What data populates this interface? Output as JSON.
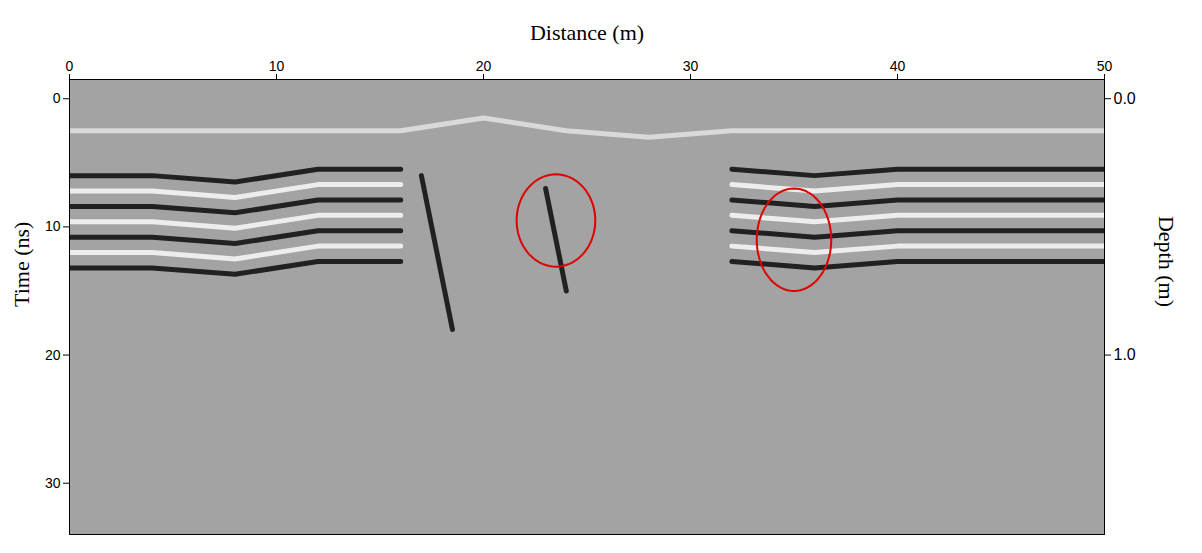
{
  "chart_data": {
    "type": "radargram",
    "x_label": "Distance (m)",
    "y_label": "Time (ns)",
    "y2_label": "Depth (m)",
    "color": "#a3a3a3",
    "xlim": [
      0,
      50
    ],
    "xticks": [
      0,
      10,
      20,
      30,
      40,
      50
    ],
    "ylim": [
      -1.5,
      34
    ],
    "yticks": [
      0,
      10,
      20,
      30
    ],
    "y2lim": [
      -0.075,
      1.7
    ],
    "y2ticks": [
      {
        "value": 0,
        "label": "0.0"
      },
      {
        "value": 1,
        "label": "1.0"
      }
    ],
    "reflectors": [
      {
        "color": "#e6e6e6",
        "x": [
          0,
          4,
          8,
          12,
          16,
          20,
          24,
          28,
          32,
          36,
          40,
          44,
          48,
          50
        ],
        "y": [
          2.5,
          2.5,
          2.5,
          2.5,
          2.5,
          1.5,
          2.5,
          3,
          2.5,
          2.5,
          2.5,
          2.5,
          2.5,
          2.5
        ]
      },
      {
        "color": "#000000",
        "x": [
          0,
          4,
          8,
          12,
          16,
          20,
          24,
          28,
          32,
          36,
          40,
          44,
          48,
          50
        ],
        "y": [
          6,
          6,
          6.5,
          5.5,
          5.5,
          null,
          null,
          null,
          5.5,
          6,
          5.5,
          5.5,
          5.5,
          5.5
        ]
      },
      {
        "color": "#ffffff",
        "x": [
          0,
          4,
          8,
          12,
          16,
          20,
          24,
          28,
          32,
          36,
          40,
          44,
          48,
          50
        ],
        "y": [
          7.2,
          7.2,
          7.7,
          6.7,
          6.7,
          null,
          null,
          null,
          6.7,
          7.2,
          6.7,
          6.7,
          6.7,
          6.7
        ]
      },
      {
        "color": "#000000",
        "x": [
          0,
          4,
          8,
          12,
          16,
          20,
          24,
          28,
          32,
          36,
          40,
          44,
          48,
          50
        ],
        "y": [
          8.4,
          8.4,
          8.9,
          7.9,
          7.9,
          null,
          null,
          null,
          7.9,
          8.4,
          7.9,
          7.9,
          7.9,
          7.9
        ]
      },
      {
        "color": "#ffffff",
        "x": [
          0,
          4,
          8,
          12,
          16,
          20,
          24,
          28,
          32,
          36,
          40,
          44,
          48,
          50
        ],
        "y": [
          9.6,
          9.6,
          10.1,
          9.1,
          9.1,
          null,
          null,
          null,
          9.1,
          9.6,
          9.1,
          9.1,
          9.1,
          9.1
        ]
      },
      {
        "color": "#000000",
        "x": [
          0,
          4,
          8,
          12,
          16,
          20,
          24,
          28,
          32,
          36,
          40,
          44,
          48,
          50
        ],
        "y": [
          10.8,
          10.8,
          11.3,
          10.3,
          10.3,
          null,
          null,
          null,
          10.3,
          10.8,
          10.3,
          10.3,
          10.3,
          10.3
        ]
      },
      {
        "color": "#ffffff",
        "x": [
          0,
          4,
          8,
          12,
          16,
          20,
          24,
          28,
          32,
          36,
          40,
          44,
          48,
          50
        ],
        "y": [
          12,
          12,
          12.5,
          11.5,
          11.5,
          null,
          null,
          null,
          11.5,
          12,
          11.5,
          11.5,
          11.5,
          11.5
        ]
      },
      {
        "color": "#000000",
        "x": [
          0,
          4,
          8,
          12,
          16,
          20,
          24,
          28,
          32,
          36,
          40,
          44,
          48,
          50
        ],
        "y": [
          13.2,
          13.2,
          13.7,
          12.7,
          12.7,
          null,
          null,
          null,
          12.7,
          13.2,
          12.7,
          12.7,
          12.7,
          12.7
        ]
      },
      {
        "color": "#000000",
        "x": [
          17,
          17.5,
          18,
          18.5
        ],
        "y": [
          6,
          10,
          14,
          18
        ]
      },
      {
        "color": "#000000",
        "x": [
          23,
          23.5,
          24
        ],
        "y": [
          7,
          11,
          15
        ]
      }
    ],
    "annotations": [
      {
        "shape": "ellipse",
        "x": 23.5,
        "y": 9.5,
        "rx": 1.9,
        "ry": 3.6,
        "color": "#e00000"
      },
      {
        "shape": "ellipse",
        "x": 35,
        "y": 11,
        "rx": 1.8,
        "ry": 4.0,
        "color": "#e00000"
      }
    ]
  }
}
